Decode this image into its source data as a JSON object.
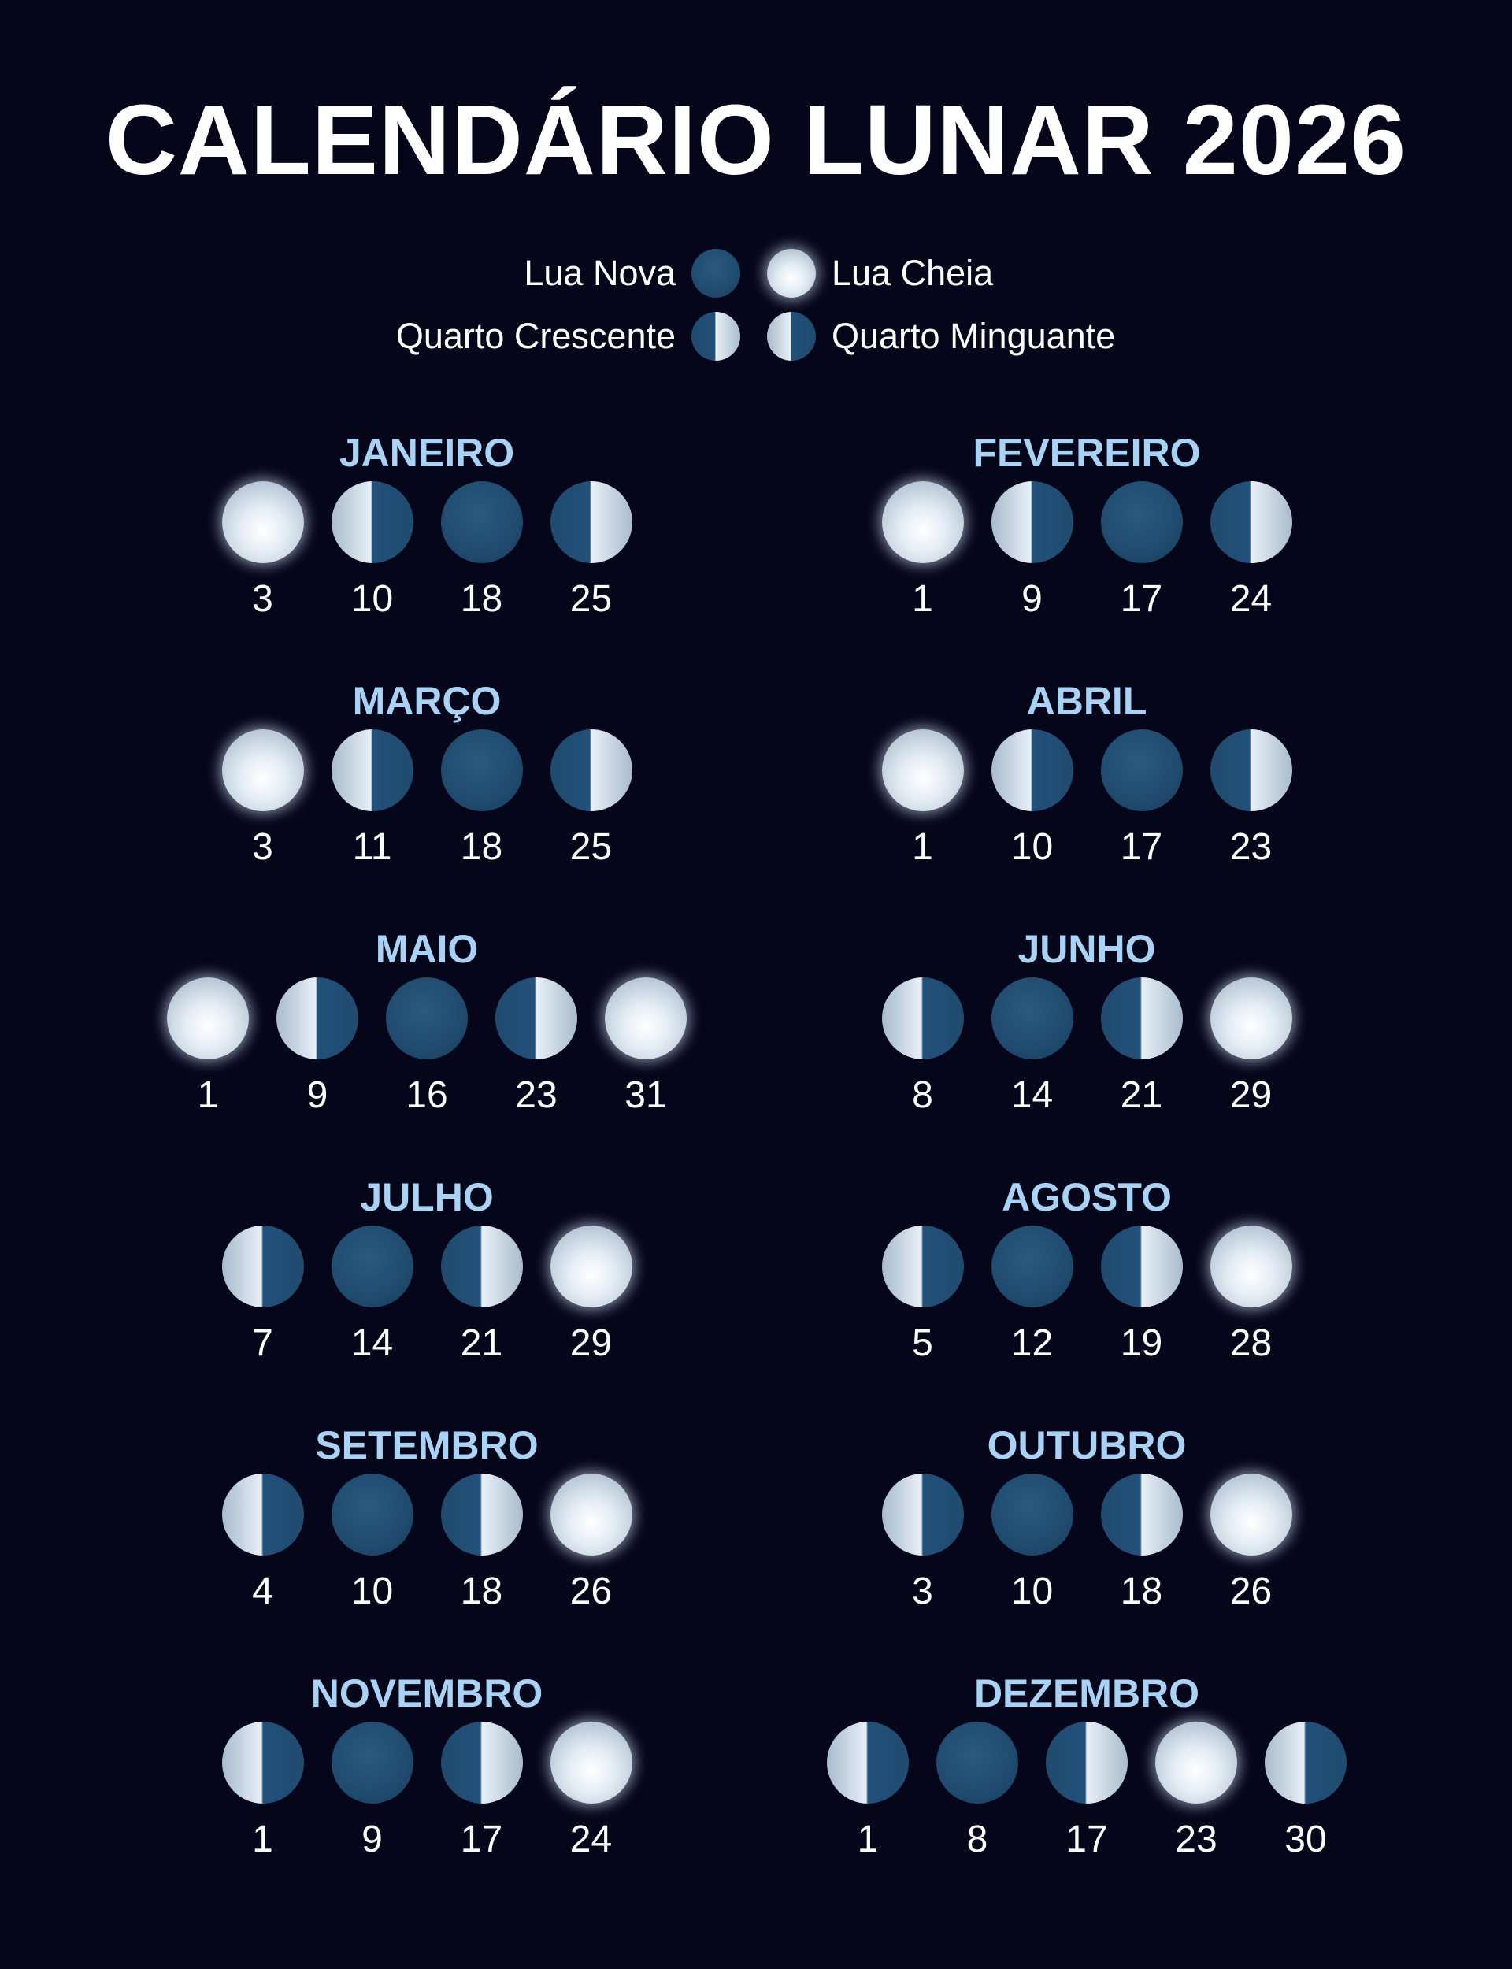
{
  "title": "CALENDÁRIO LUNAR 2026",
  "legend": {
    "new": "Lua Nova",
    "full": "Lua Cheia",
    "first": "Quarto Crescente",
    "last": "Quarto Minguante"
  },
  "colors": {
    "background": "#05061a",
    "month_title": "#a9d3f5",
    "new_moon": "#1f4b6e"
  },
  "months": [
    {
      "name": "JANEIRO",
      "phases": [
        {
          "type": "full",
          "day": "3"
        },
        {
          "type": "last",
          "day": "10"
        },
        {
          "type": "new",
          "day": "18"
        },
        {
          "type": "first",
          "day": "25"
        }
      ]
    },
    {
      "name": "FEVEREIRO",
      "phases": [
        {
          "type": "full",
          "day": "1"
        },
        {
          "type": "last",
          "day": "9"
        },
        {
          "type": "new",
          "day": "17"
        },
        {
          "type": "first",
          "day": "24"
        }
      ]
    },
    {
      "name": "MARÇO",
      "phases": [
        {
          "type": "full",
          "day": "3"
        },
        {
          "type": "last",
          "day": "11"
        },
        {
          "type": "new",
          "day": "18"
        },
        {
          "type": "first",
          "day": "25"
        }
      ]
    },
    {
      "name": "ABRIL",
      "phases": [
        {
          "type": "full",
          "day": "1"
        },
        {
          "type": "last",
          "day": "10"
        },
        {
          "type": "new",
          "day": "17"
        },
        {
          "type": "first",
          "day": "23"
        }
      ]
    },
    {
      "name": "MAIO",
      "phases": [
        {
          "type": "full",
          "day": "1"
        },
        {
          "type": "last",
          "day": "9"
        },
        {
          "type": "new",
          "day": "16"
        },
        {
          "type": "first",
          "day": "23"
        },
        {
          "type": "full",
          "day": "31"
        }
      ]
    },
    {
      "name": "JUNHO",
      "phases": [
        {
          "type": "last",
          "day": "8"
        },
        {
          "type": "new",
          "day": "14"
        },
        {
          "type": "first",
          "day": "21"
        },
        {
          "type": "full",
          "day": "29"
        }
      ]
    },
    {
      "name": "JULHO",
      "phases": [
        {
          "type": "last",
          "day": "7"
        },
        {
          "type": "new",
          "day": "14"
        },
        {
          "type": "first",
          "day": "21"
        },
        {
          "type": "full",
          "day": "29"
        }
      ]
    },
    {
      "name": "AGOSTO",
      "phases": [
        {
          "type": "last",
          "day": "5"
        },
        {
          "type": "new",
          "day": "12"
        },
        {
          "type": "first",
          "day": "19"
        },
        {
          "type": "full",
          "day": "28"
        }
      ]
    },
    {
      "name": "SETEMBRO",
      "phases": [
        {
          "type": "last",
          "day": "4"
        },
        {
          "type": "new",
          "day": "10"
        },
        {
          "type": "first",
          "day": "18"
        },
        {
          "type": "full",
          "day": "26"
        }
      ]
    },
    {
      "name": "OUTUBRO",
      "phases": [
        {
          "type": "last",
          "day": "3"
        },
        {
          "type": "new",
          "day": "10"
        },
        {
          "type": "first",
          "day": "18"
        },
        {
          "type": "full",
          "day": "26"
        }
      ]
    },
    {
      "name": "NOVEMBRO",
      "phases": [
        {
          "type": "last",
          "day": "1"
        },
        {
          "type": "new",
          "day": "9"
        },
        {
          "type": "first",
          "day": "17"
        },
        {
          "type": "full",
          "day": "24"
        }
      ]
    },
    {
      "name": "DEZEMBRO",
      "phases": [
        {
          "type": "last",
          "day": "1"
        },
        {
          "type": "new",
          "day": "8"
        },
        {
          "type": "first",
          "day": "17"
        },
        {
          "type": "full",
          "day": "23"
        },
        {
          "type": "last",
          "day": "30"
        }
      ]
    }
  ]
}
